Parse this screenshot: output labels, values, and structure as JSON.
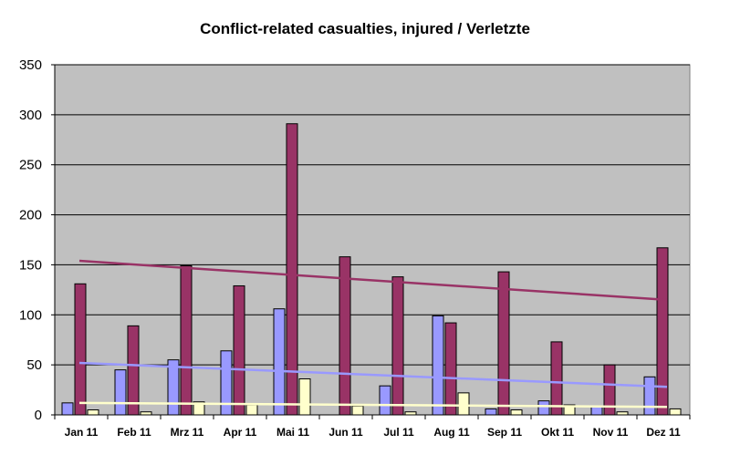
{
  "chart_data": {
    "type": "bar",
    "title": "Conflict-related casualties, injured / Verletzte",
    "xlabel": "",
    "ylabel": "",
    "ylim": [
      0,
      350
    ],
    "yticks": [
      0,
      50,
      100,
      150,
      200,
      250,
      300,
      350
    ],
    "categories": [
      "Jan 11",
      "Feb 11",
      "Mrz 11",
      "Apr 11",
      "Mai 11",
      "Jun 11",
      "Jul 11",
      "Aug 11",
      "Sep 11",
      "Okt 11",
      "Nov 11",
      "Dez 11"
    ],
    "grid": true,
    "legend": "none",
    "plot_background": "#c0c0c0",
    "series": [
      {
        "color": "#9999ff",
        "values": [
          12,
          45,
          55,
          64,
          106,
          0,
          29,
          99,
          6,
          14,
          8,
          38
        ]
      },
      {
        "color": "#993366",
        "values": [
          131,
          89,
          149,
          129,
          291,
          158,
          138,
          92,
          143,
          73,
          50,
          167
        ]
      },
      {
        "color": "#ffffcc",
        "values": [
          5,
          3,
          13,
          10,
          36,
          9,
          3,
          22,
          5,
          10,
          3,
          6
        ]
      }
    ],
    "trendlines": [
      {
        "color": "#9999ff",
        "start": 52,
        "end": 28
      },
      {
        "color": "#993366",
        "start": 154,
        "end": 115
      },
      {
        "color": "#ffffcc",
        "start": 12,
        "end": 8
      }
    ]
  }
}
